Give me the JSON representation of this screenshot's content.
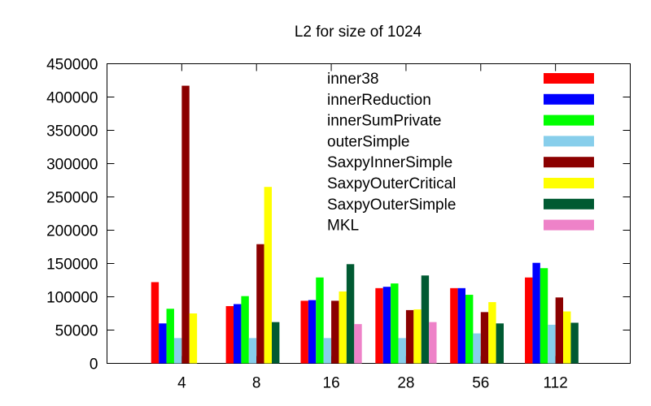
{
  "chart_data": {
    "type": "bar",
    "title": "L2 for size of 1024",
    "xlabel": "",
    "ylabel": "",
    "ylim": [
      0,
      450000
    ],
    "yticks": [
      0,
      50000,
      100000,
      150000,
      200000,
      250000,
      300000,
      350000,
      400000,
      450000
    ],
    "grid": false,
    "legend_position": "top-right",
    "categories": [
      "4",
      "8",
      "16",
      "28",
      "56",
      "112"
    ],
    "series": [
      {
        "name": "inner38",
        "color": "#ff0000",
        "values": [
          122000,
          86000,
          94000,
          113000,
          113000,
          129000
        ]
      },
      {
        "name": "innerReduction",
        "color": "#0000ff",
        "values": [
          60000,
          89000,
          95000,
          115000,
          113000,
          151000
        ]
      },
      {
        "name": "innerSumPrivate",
        "color": "#00ff00",
        "values": [
          82000,
          101000,
          129000,
          120000,
          103000,
          143000
        ]
      },
      {
        "name": "outerSimple",
        "color": "#87ceeb",
        "values": [
          38000,
          38000,
          38000,
          38000,
          45000,
          58000
        ]
      },
      {
        "name": "SaxpyInnerSimple",
        "color": "#8b0000",
        "values": [
          417000,
          179000,
          94000,
          80000,
          77000,
          99000
        ]
      },
      {
        "name": "SaxpyOuterCritical",
        "color": "#ffff00",
        "values": [
          75000,
          265000,
          108000,
          81000,
          92000,
          78000
        ]
      },
      {
        "name": "SaxpyOuterSimple",
        "color": "#005a32",
        "values": [
          0,
          62000,
          149000,
          132000,
          60000,
          61000
        ]
      },
      {
        "name": "MKL",
        "color": "#ee82c8",
        "values": [
          0,
          0,
          59000,
          62000,
          0,
          0
        ]
      }
    ]
  }
}
